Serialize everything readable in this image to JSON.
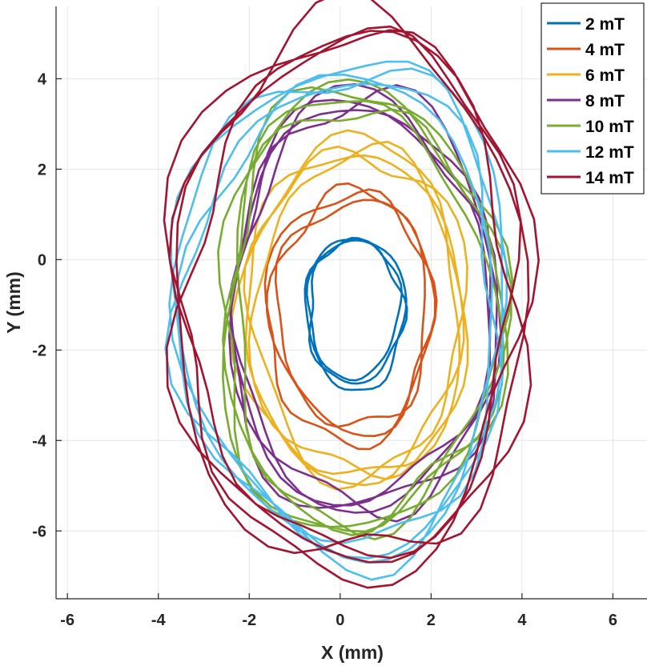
{
  "chart_data": {
    "type": "line",
    "title": "",
    "xlabel": "X (mm)",
    "ylabel": "Y (mm)",
    "xlim": [
      -6.25,
      6.75
    ],
    "ylim": [
      -7.5,
      5.6
    ],
    "xticks": [
      -6,
      -4,
      -2,
      0,
      2,
      4,
      6
    ],
    "yticks": [
      -6,
      -4,
      -2,
      0,
      2,
      4
    ],
    "grid": true,
    "legend_position": "top-right",
    "series": [
      {
        "name": "2 mT",
        "color": "#0072BD",
        "cx": 0.2,
        "cy": -1.0,
        "rx_right": 1.1,
        "rx_left": 1.05,
        "ry_top": 1.55,
        "ry_bottom": 1.75,
        "loops": 3
      },
      {
        "name": "4 mT",
        "color": "#D95319",
        "cx": 0.3,
        "cy": -1.2,
        "rx_right": 1.7,
        "rx_left": 1.85,
        "ry_top": 2.75,
        "ry_bottom": 2.65,
        "loops": 3
      },
      {
        "name": "6 mT",
        "color": "#EDB120",
        "cx": 0.45,
        "cy": -1.2,
        "rx_right": 2.3,
        "rx_left": 2.55,
        "ry_top": 3.75,
        "ry_bottom": 3.65,
        "loops": 4
      },
      {
        "name": "8 mT",
        "color": "#7E2F8E",
        "cx": 0.5,
        "cy": -1.1,
        "rx_right": 2.85,
        "rx_left": 2.95,
        "ry_top": 4.6,
        "ry_bottom": 4.45,
        "loops": 4
      },
      {
        "name": "10 mT",
        "color": "#77AC30",
        "cx": 0.45,
        "cy": -1.25,
        "rx_right": 3.05,
        "rx_left": 3.1,
        "ry_top": 4.9,
        "ry_bottom": 4.8,
        "loops": 4
      },
      {
        "name": "12 mT",
        "color": "#4DBEEE",
        "cx": 0.45,
        "cy": -1.05,
        "rx_right": 3.25,
        "rx_left": 3.95,
        "ry_top": 5.3,
        "ry_bottom": 5.45,
        "loops": 4
      },
      {
        "name": "14 mT",
        "color": "#A2142F",
        "cx": 0.35,
        "cy": -0.95,
        "rx_right": 3.7,
        "rx_left": 4.0,
        "ry_top": 6.15,
        "ry_bottom": 5.85,
        "loops": 4
      }
    ]
  }
}
